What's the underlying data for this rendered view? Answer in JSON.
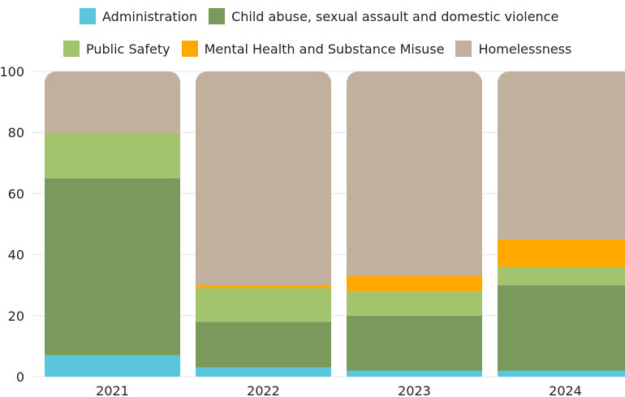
{
  "chart_data": {
    "type": "bar",
    "stacked": true,
    "categories": [
      "2021",
      "2022",
      "2023",
      "2024"
    ],
    "series": [
      {
        "name": "Administration",
        "color": "#5bc5de",
        "values": [
          7,
          3,
          2,
          2
        ]
      },
      {
        "name": "Child abuse, sexual assault and domestic violence",
        "color": "#7a9a5c",
        "values": [
          58,
          15,
          18,
          28
        ]
      },
      {
        "name": "Public Safety",
        "color": "#a3c46c",
        "values": [
          15,
          11,
          8,
          6
        ]
      },
      {
        "name": "Mental Health and Substance Misuse",
        "color": "#ffa800",
        "values": [
          0,
          1,
          5,
          9
        ]
      },
      {
        "name": "Homelessness",
        "color": "#c2b09e",
        "values": [
          20,
          70,
          67,
          55
        ]
      }
    ],
    "ylim": [
      0,
      100
    ],
    "yticks": [
      0,
      20,
      40,
      60,
      80,
      100
    ],
    "grid": true,
    "legend_position": "top",
    "title": "",
    "xlabel": "",
    "ylabel": ""
  }
}
